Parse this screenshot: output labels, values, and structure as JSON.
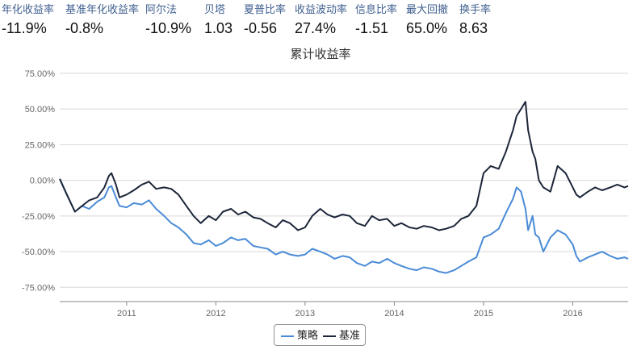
{
  "metrics": [
    {
      "label": "年化收益率",
      "value": "-11.9%"
    },
    {
      "label": "基准年化收益率",
      "value": "-0.8%"
    },
    {
      "label": "阿尔法",
      "value": "-10.9%"
    },
    {
      "label": "贝塔",
      "value": "1.03"
    },
    {
      "label": "夏普比率",
      "value": "-0.56"
    },
    {
      "label": "收益波动率",
      "value": "27.4%"
    },
    {
      "label": "信息比率",
      "value": "-1.51"
    },
    {
      "label": "最大回撤",
      "value": "65.0%"
    },
    {
      "label": "换手率",
      "value": "8.63"
    }
  ],
  "chart_data": {
    "type": "line",
    "title": "累计收益率",
    "xlabel": "",
    "ylabel": "",
    "x_ticks": [
      "2011",
      "2012",
      "2013",
      "2014",
      "2015",
      "2016"
    ],
    "y_ticks": [
      "75.00%",
      "50.00%",
      "25.00%",
      "0.00%",
      "-25.00%",
      "-50.00%",
      "-75.00%"
    ],
    "ylim": [
      -85,
      80
    ],
    "xlim": [
      2010.25,
      2016.62
    ],
    "grid": true,
    "legend_position": "bottom-center",
    "series": [
      {
        "name": "策略",
        "color": "#4a8bd6",
        "x": [
          2010.25,
          2010.33,
          2010.42,
          2010.5,
          2010.58,
          2010.67,
          2010.75,
          2010.8,
          2010.83,
          2010.88,
          2010.92,
          2011.0,
          2011.08,
          2011.17,
          2011.25,
          2011.33,
          2011.42,
          2011.5,
          2011.58,
          2011.67,
          2011.75,
          2011.83,
          2011.92,
          2012.0,
          2012.08,
          2012.17,
          2012.25,
          2012.33,
          2012.42,
          2012.5,
          2012.58,
          2012.67,
          2012.75,
          2012.83,
          2012.92,
          2013.0,
          2013.08,
          2013.17,
          2013.25,
          2013.33,
          2013.42,
          2013.5,
          2013.58,
          2013.67,
          2013.75,
          2013.83,
          2013.92,
          2014.0,
          2014.08,
          2014.17,
          2014.25,
          2014.33,
          2014.42,
          2014.5,
          2014.58,
          2014.67,
          2014.75,
          2014.83,
          2014.92,
          2015.0,
          2015.08,
          2015.17,
          2015.25,
          2015.33,
          2015.37,
          2015.42,
          2015.47,
          2015.5,
          2015.55,
          2015.58,
          2015.62,
          2015.67,
          2015.75,
          2015.83,
          2015.92,
          2016.0,
          2016.04,
          2016.08,
          2016.17,
          2016.25,
          2016.33,
          2016.42,
          2016.5,
          2016.58,
          2016.62
        ],
        "y": [
          1,
          -10,
          -22,
          -18,
          -20,
          -15,
          -12,
          -5,
          -4,
          -12,
          -18,
          -19,
          -16,
          -17,
          -14,
          -20,
          -25,
          -30,
          -33,
          -38,
          -44,
          -45,
          -42,
          -46,
          -44,
          -40,
          -42,
          -41,
          -46,
          -47,
          -48,
          -52,
          -50,
          -52,
          -53,
          -52,
          -48,
          -50,
          -52,
          -55,
          -53,
          -54,
          -58,
          -60,
          -57,
          -58,
          -55,
          -58,
          -60,
          -62,
          -63,
          -61,
          -62,
          -64,
          -65,
          -63,
          -60,
          -57,
          -54,
          -40,
          -38,
          -34,
          -23,
          -13,
          -5,
          -8,
          -20,
          -35,
          -25,
          -38,
          -40,
          -50,
          -40,
          -35,
          -38,
          -45,
          -53,
          -57,
          -54,
          -52,
          -50,
          -53,
          -55,
          -54,
          -55
        ]
      },
      {
        "name": "基准",
        "color": "#1c2639",
        "x": [
          2010.25,
          2010.33,
          2010.42,
          2010.5,
          2010.58,
          2010.67,
          2010.75,
          2010.8,
          2010.83,
          2010.88,
          2010.92,
          2011.0,
          2011.08,
          2011.17,
          2011.25,
          2011.33,
          2011.42,
          2011.5,
          2011.58,
          2011.67,
          2011.75,
          2011.83,
          2011.92,
          2012.0,
          2012.08,
          2012.17,
          2012.25,
          2012.33,
          2012.42,
          2012.5,
          2012.58,
          2012.67,
          2012.75,
          2012.83,
          2012.92,
          2013.0,
          2013.08,
          2013.17,
          2013.25,
          2013.33,
          2013.42,
          2013.5,
          2013.58,
          2013.67,
          2013.75,
          2013.83,
          2013.92,
          2014.0,
          2014.08,
          2014.17,
          2014.25,
          2014.33,
          2014.42,
          2014.5,
          2014.58,
          2014.67,
          2014.75,
          2014.83,
          2014.92,
          2015.0,
          2015.08,
          2015.17,
          2015.25,
          2015.33,
          2015.37,
          2015.42,
          2015.47,
          2015.5,
          2015.55,
          2015.58,
          2015.62,
          2015.67,
          2015.75,
          2015.83,
          2015.92,
          2016.0,
          2016.04,
          2016.08,
          2016.17,
          2016.25,
          2016.33,
          2016.42,
          2016.5,
          2016.58,
          2016.62
        ],
        "y": [
          1,
          -10,
          -22,
          -18,
          -14,
          -12,
          -5,
          3,
          5,
          -3,
          -12,
          -10,
          -7,
          -3,
          -1,
          -6,
          -5,
          -6,
          -10,
          -18,
          -25,
          -30,
          -25,
          -28,
          -22,
          -20,
          -24,
          -22,
          -26,
          -27,
          -30,
          -33,
          -28,
          -30,
          -35,
          -33,
          -25,
          -20,
          -24,
          -26,
          -24,
          -25,
          -30,
          -32,
          -25,
          -28,
          -27,
          -32,
          -30,
          -33,
          -34,
          -32,
          -33,
          -35,
          -34,
          -32,
          -27,
          -25,
          -18,
          5,
          10,
          8,
          20,
          35,
          45,
          50,
          55,
          35,
          20,
          15,
          0,
          -5,
          -8,
          10,
          5,
          -5,
          -10,
          -12,
          -8,
          -5,
          -7,
          -5,
          -3,
          -5,
          -4
        ]
      }
    ]
  }
}
